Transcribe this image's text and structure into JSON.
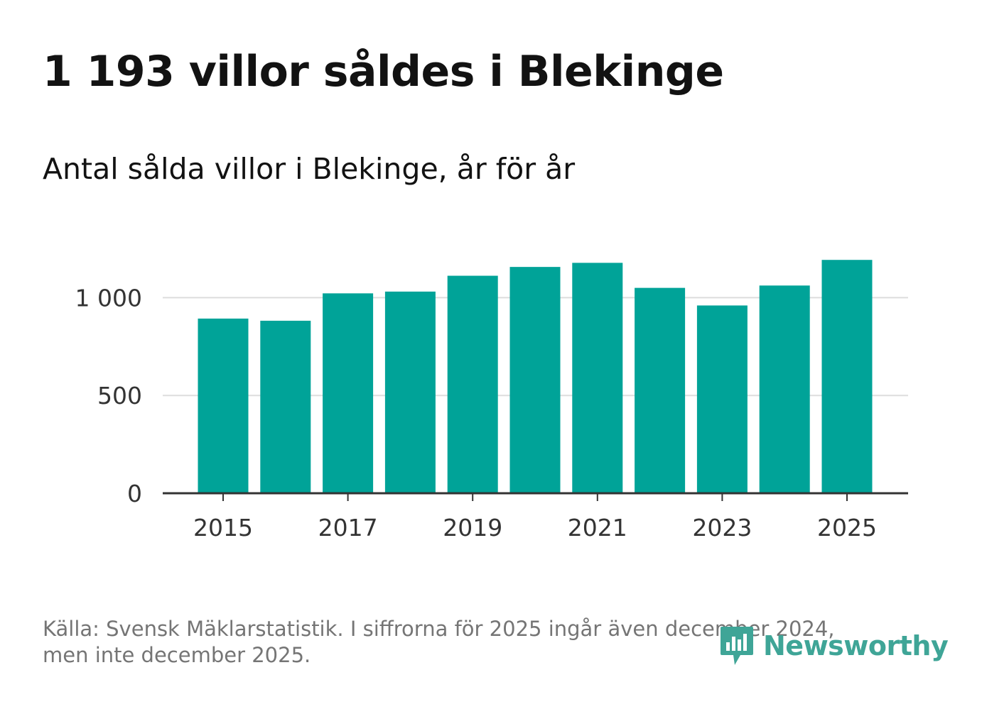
{
  "title": "1 193 villor såldes i Blekinge",
  "subtitle": "Antal sålda villor i Blekinge, år för år",
  "colors": {
    "bar": "#00a398",
    "grid": "#dddddd",
    "axis": "#333333",
    "brand": "#3fa597"
  },
  "chart_data": {
    "type": "bar",
    "title": "Antal sålda villor i Blekinge, år för år",
    "xlabel": "",
    "ylabel": "",
    "categories": [
      "2015",
      "2016",
      "2017",
      "2018",
      "2019",
      "2020",
      "2021",
      "2022",
      "2023",
      "2024",
      "2025"
    ],
    "values": [
      893,
      882,
      1022,
      1031,
      1112,
      1157,
      1178,
      1050,
      960,
      1062,
      1193
    ],
    "ylim": [
      0,
      1300
    ],
    "yticks": [
      0,
      500,
      1000
    ],
    "ytick_labels": [
      "0",
      "500",
      "1 000"
    ],
    "xtick_labels": [
      "2015",
      "2017",
      "2019",
      "2021",
      "2023",
      "2025"
    ],
    "grid": true
  },
  "footer": {
    "line1": "Källa: Svensk Mäklarstatistik. I siffrorna för 2025 ingår även december 2024,",
    "line2": "men inte december 2025."
  },
  "brand": {
    "name": "Newsworthy",
    "icon": "newsworthy-logo-icon"
  }
}
